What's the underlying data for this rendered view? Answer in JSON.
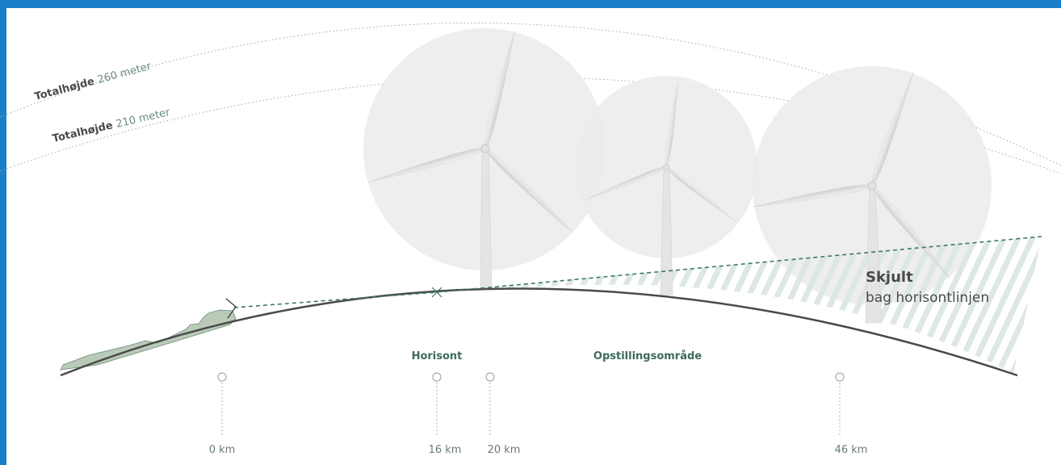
{
  "heights": [
    {
      "label": "Totalhøjde",
      "value": "260 meter"
    },
    {
      "label": "Totalhøjde",
      "value": "210 meter"
    }
  ],
  "hidden": {
    "title": "Skjult",
    "subtitle": "bag horisontlinjen"
  },
  "areas": {
    "horizon": "Horisont",
    "site": "Opstillingsområde"
  },
  "distances": [
    "0 km",
    "16 km",
    "20 km",
    "46 km"
  ]
}
